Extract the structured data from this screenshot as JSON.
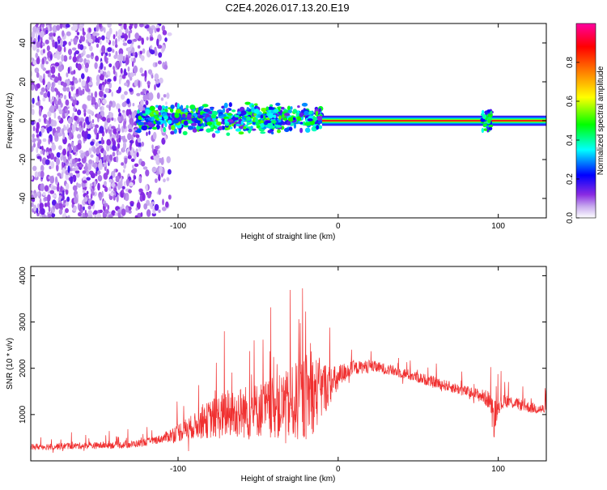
{
  "title": "C2E4.2026.017.13.20.E19",
  "chart_data": [
    {
      "type": "heatmap",
      "title": "C2E4.2026.017.13.20.E19",
      "xlabel": "Height of straight line (km)",
      "ylabel": "Frequency (Hz)",
      "xlim": [
        -192,
        130
      ],
      "ylim": [
        -50,
        50
      ],
      "xticks": [
        -100,
        0,
        100
      ],
      "xtick_labels": [
        "-100",
        "0",
        "100"
      ],
      "yticks": [
        -40,
        -20,
        0,
        20,
        40
      ],
      "ytick_labels": [
        "-40",
        "-20",
        "0",
        "20",
        "40"
      ],
      "colorbar": {
        "label": "Normalized spectral amplitude",
        "range": [
          0,
          1
        ],
        "ticks": [
          0.0,
          0.2,
          0.4,
          0.6,
          0.8
        ],
        "tick_labels": [
          "0.0",
          "0.2",
          "0.4",
          "0.6",
          "0.8"
        ],
        "colors": [
          "#ffffff",
          "#c6a8ee",
          "#8a2be2",
          "#0000ff",
          "#00ffff",
          "#00ff00",
          "#ffff00",
          "#ff8000",
          "#ff0000",
          "#ff00a0"
        ]
      },
      "regions": [
        {
          "x_range": [
            -192,
            -105
          ],
          "freq_range": [
            -50,
            50
          ],
          "amplitude": 0.12,
          "pattern": "broadband noise"
        },
        {
          "x_range": [
            -125,
            -10
          ],
          "freq_range": [
            -5,
            7
          ],
          "amplitude": 0.35,
          "pattern": "spread tone"
        },
        {
          "x_range": [
            -10,
            130
          ],
          "freq_range": [
            -1,
            1
          ],
          "amplitude": 1.0,
          "pattern": "narrow tone at 0 Hz"
        },
        {
          "x_range": [
            90,
            96
          ],
          "freq_range": [
            -5,
            5
          ],
          "amplitude": 0.35,
          "pattern": "local burst"
        }
      ],
      "grid": false
    },
    {
      "type": "line",
      "xlabel": "Height of straight line (km)",
      "ylabel": "SNR (10 * v/v)",
      "xlim": [
        -192,
        130
      ],
      "ylim": [
        0,
        4200
      ],
      "xticks": [
        -100,
        0,
        100
      ],
      "xtick_labels": [
        "-100",
        "0",
        "100"
      ],
      "yticks": [
        1000,
        2000,
        3000,
        4000
      ],
      "ytick_labels": [
        "1000",
        "2000",
        "3000",
        "4000"
      ],
      "color": "#f03030",
      "x": [
        -192,
        -170,
        -150,
        -130,
        -120,
        -110,
        -100,
        -90,
        -80,
        -75,
        -70,
        -60,
        -50,
        -40,
        -30,
        -25,
        -20,
        -15,
        -10,
        -5,
        0,
        5,
        10,
        20,
        30,
        40,
        50,
        60,
        70,
        80,
        90,
        95,
        97,
        100,
        105,
        110,
        120,
        130
      ],
      "values": [
        300,
        320,
        330,
        350,
        400,
        480,
        620,
        750,
        900,
        950,
        1000,
        1050,
        1100,
        1150,
        1200,
        1300,
        1400,
        1450,
        1550,
        1650,
        1750,
        1950,
        2000,
        2050,
        1980,
        1900,
        1800,
        1700,
        1600,
        1500,
        1400,
        1300,
        900,
        1200,
        1300,
        1250,
        1150,
        1100
      ],
      "spread": [
        120,
        120,
        120,
        130,
        140,
        150,
        350,
        450,
        700,
        800,
        900,
        950,
        1000,
        1100,
        1300,
        1500,
        1600,
        1400,
        1100,
        700,
        500,
        350,
        250,
        220,
        200,
        200,
        200,
        200,
        200,
        200,
        250,
        350,
        700,
        300,
        250,
        220,
        200,
        200
      ],
      "grid": false
    }
  ]
}
